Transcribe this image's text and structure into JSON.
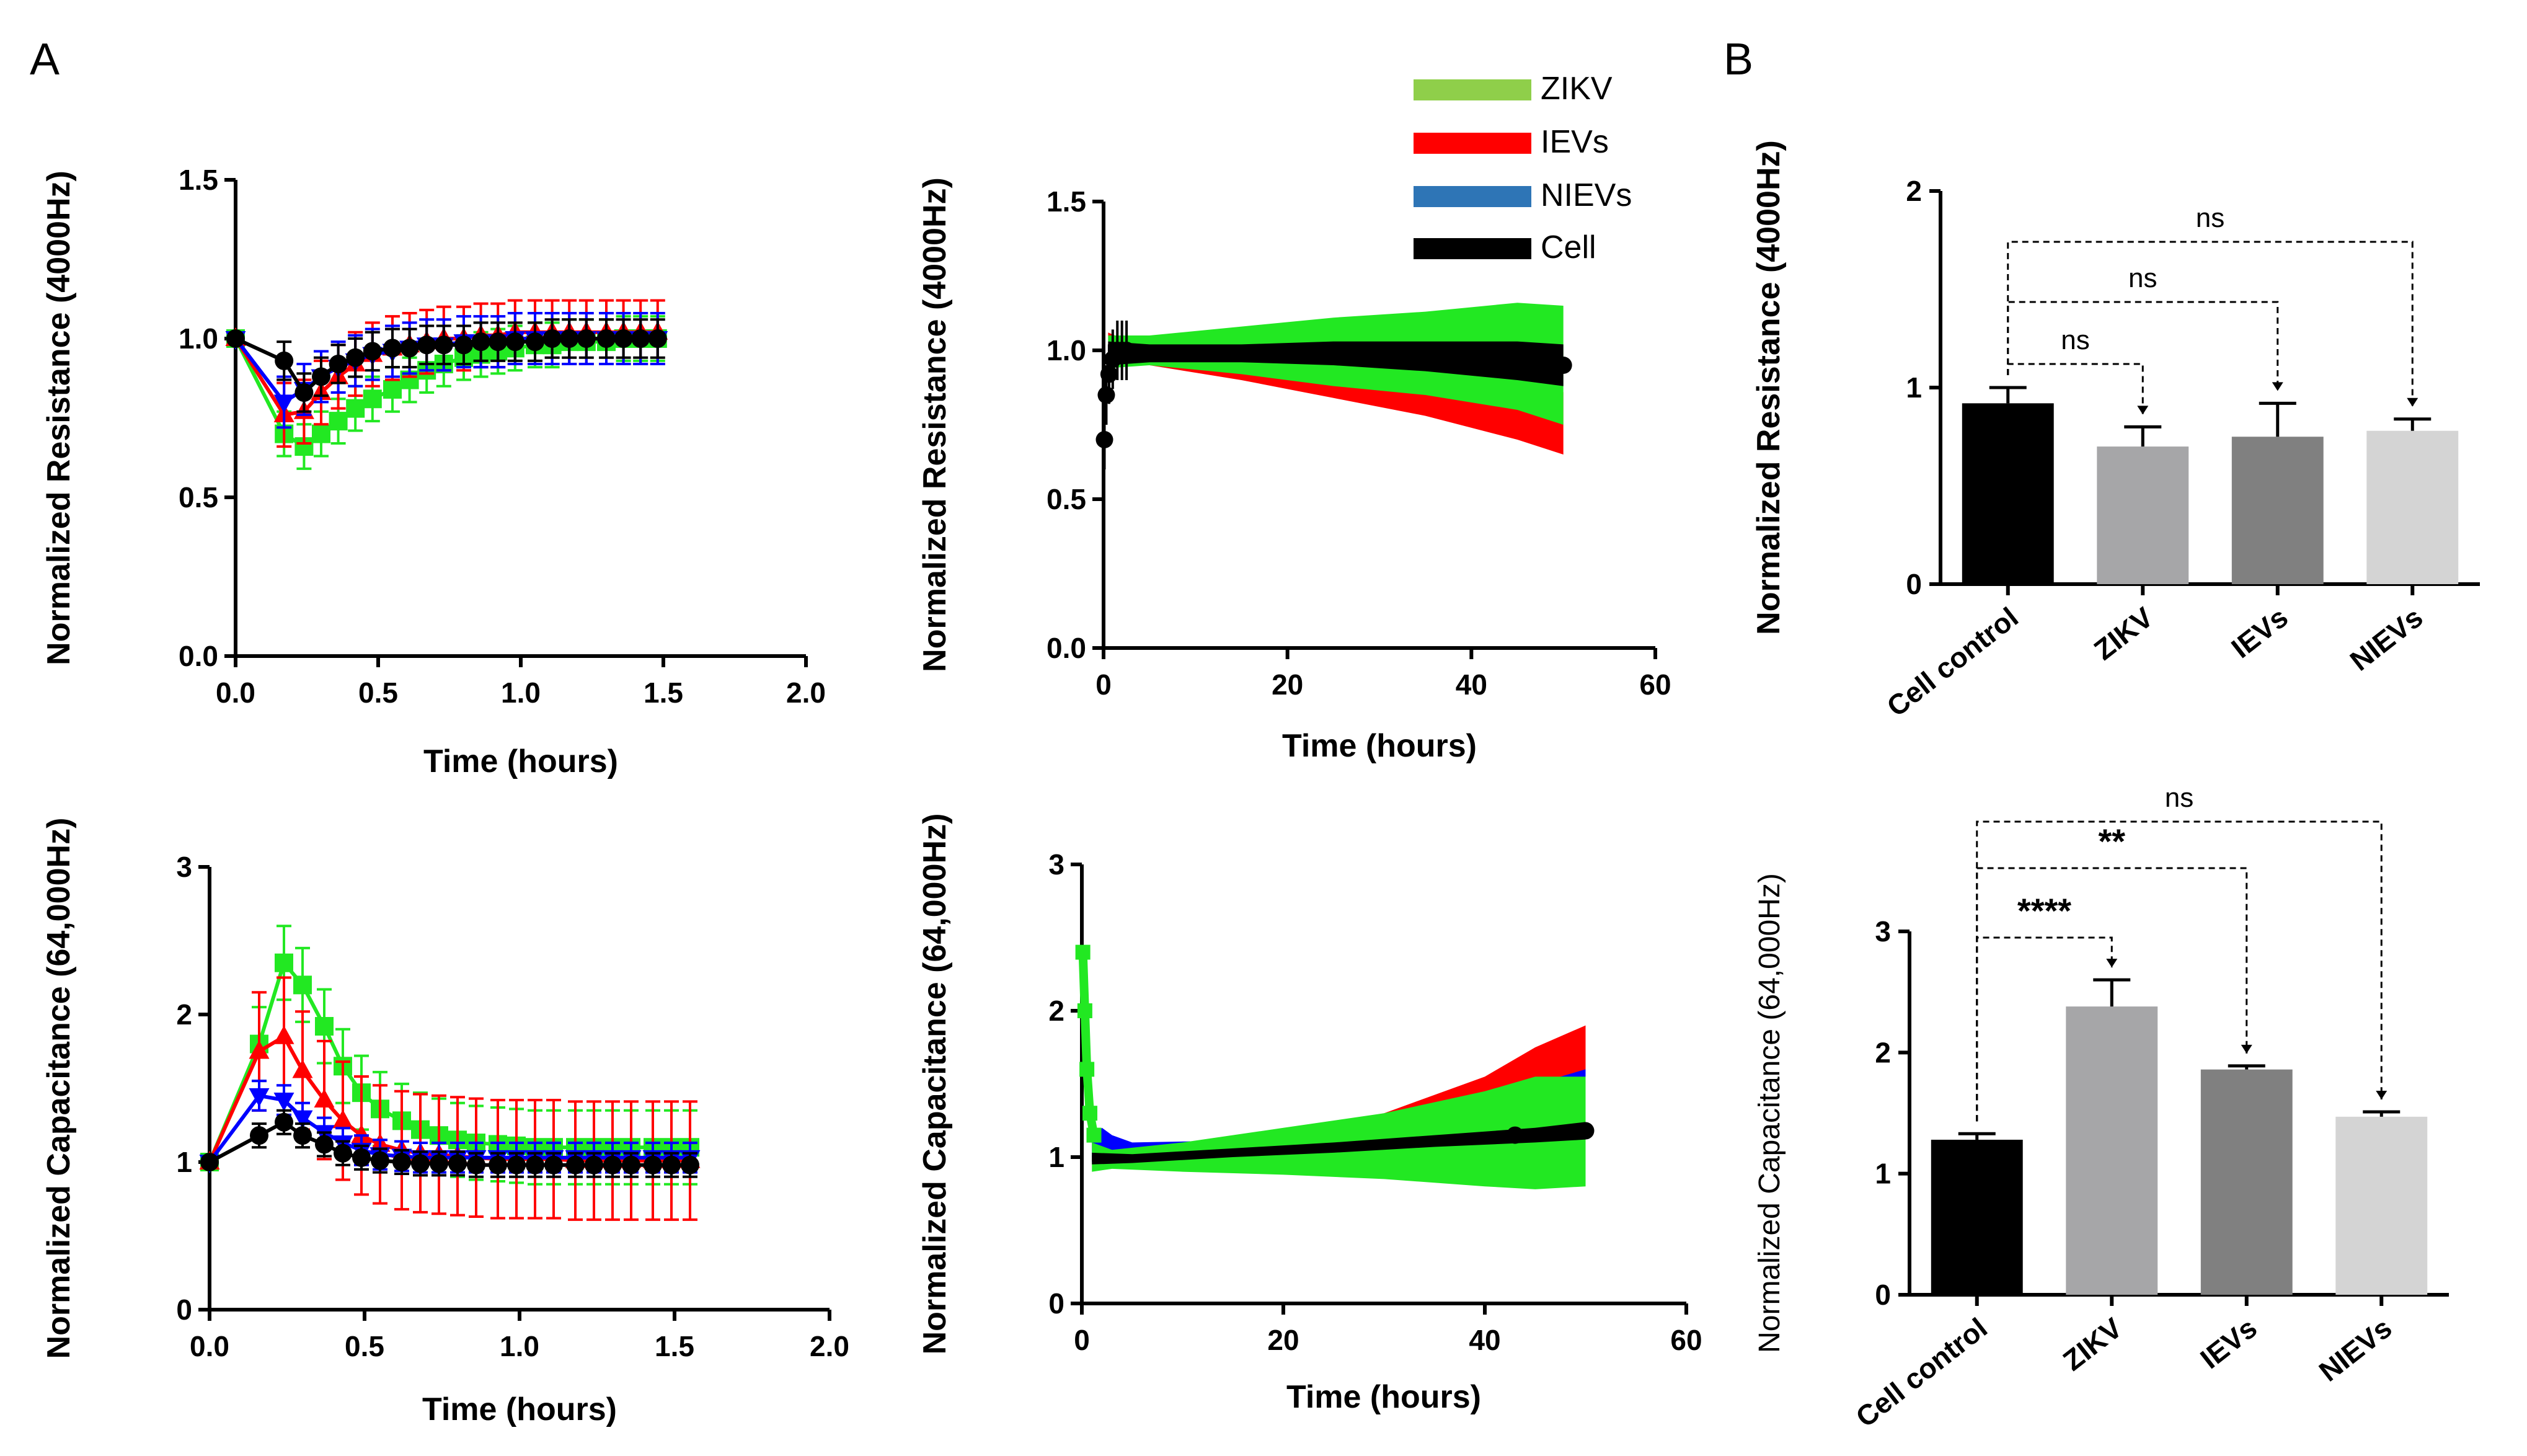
{
  "panel_labels": {
    "A": "A",
    "B": "B"
  },
  "legend": [
    {
      "name": "ZIKV",
      "color": "#8fcf4a"
    },
    {
      "name": "IEVs",
      "color": "#ff0000"
    },
    {
      "name": "NIEVs",
      "color": "#2e75b6"
    },
    {
      "name": "Cell",
      "color": "#000000"
    }
  ],
  "chart_data": [
    {
      "id": "res_short",
      "type": "line",
      "xlabel": "Time (hours)",
      "ylabel": "Normalized Resistance (4000Hz)",
      "xlim": [
        0,
        2.0
      ],
      "ylim": [
        0,
        1.5
      ],
      "xticks": [
        "0.0",
        "0.5",
        "1.0",
        "1.5",
        "2.0"
      ],
      "yticks": [
        "0.0",
        "0.5",
        "1.0",
        "1.5"
      ],
      "x": [
        0,
        0.17,
        0.24,
        0.3,
        0.36,
        0.42,
        0.48,
        0.55,
        0.61,
        0.67,
        0.73,
        0.8,
        0.86,
        0.92,
        0.98,
        1.05,
        1.11,
        1.17,
        1.23,
        1.3,
        1.36,
        1.42,
        1.48
      ],
      "series": [
        {
          "name": "ZIKV",
          "color": "#22e822",
          "marker": "square",
          "err": 0.07,
          "values": [
            1.0,
            0.7,
            0.66,
            0.7,
            0.74,
            0.78,
            0.81,
            0.84,
            0.87,
            0.9,
            0.92,
            0.94,
            0.95,
            0.96,
            0.97,
            0.98,
            0.98,
            0.99,
            0.99,
            0.99,
            1.0,
            1.0,
            1.0
          ]
        },
        {
          "name": "IEVs",
          "color": "#ff0000",
          "marker": "triangle",
          "err": 0.1,
          "values": [
            1.0,
            0.76,
            0.77,
            0.83,
            0.88,
            0.92,
            0.95,
            0.97,
            0.98,
            0.99,
            1.0,
            1.0,
            1.01,
            1.01,
            1.02,
            1.02,
            1.02,
            1.02,
            1.02,
            1.02,
            1.02,
            1.02,
            1.02
          ]
        },
        {
          "name": "NIEVs",
          "color": "#0000ff",
          "marker": "triangle-down",
          "err": 0.08,
          "values": [
            1.0,
            0.8,
            0.84,
            0.88,
            0.91,
            0.93,
            0.95,
            0.96,
            0.97,
            0.98,
            0.98,
            0.99,
            0.99,
            0.99,
            1.0,
            1.0,
            1.0,
            1.0,
            1.0,
            1.0,
            1.0,
            1.0,
            1.0
          ]
        },
        {
          "name": "Cell",
          "color": "#000000",
          "marker": "circle",
          "err": 0.06,
          "values": [
            1.0,
            0.93,
            0.83,
            0.88,
            0.92,
            0.94,
            0.96,
            0.97,
            0.97,
            0.98,
            0.98,
            0.98,
            0.99,
            0.99,
            0.99,
            0.99,
            1.0,
            1.0,
            1.0,
            1.0,
            1.0,
            1.0,
            1.0
          ]
        }
      ]
    },
    {
      "id": "res_long",
      "type": "area",
      "xlabel": "Time (hours)",
      "ylabel": "Normalized Resistance (4000Hz)",
      "xlim": [
        0,
        60
      ],
      "ylim": [
        0,
        1.5
      ],
      "xticks": [
        "0",
        "20",
        "40",
        "60"
      ],
      "yticks": [
        "0.0",
        "0.5",
        "1.0",
        "1.5"
      ],
      "bands": [
        {
          "name": "IEVs",
          "color": "#ff0000",
          "x": [
            0.5,
            5,
            15,
            25,
            35,
            45,
            50
          ],
          "lo": [
            0.98,
            0.95,
            0.9,
            0.84,
            0.78,
            0.7,
            0.65
          ],
          "hi": [
            1.06,
            1.0,
            0.98,
            0.95,
            0.92,
            0.88,
            0.86
          ]
        },
        {
          "name": "ZIKV",
          "color": "#22e822",
          "x": [
            0.5,
            5,
            15,
            25,
            35,
            45,
            50
          ],
          "lo": [
            0.94,
            0.95,
            0.92,
            0.88,
            0.85,
            0.8,
            0.75
          ],
          "hi": [
            1.05,
            1.05,
            1.08,
            1.11,
            1.13,
            1.16,
            1.15
          ]
        },
        {
          "name": "Cell",
          "color": "#000000",
          "x": [
            0.5,
            5,
            15,
            25,
            35,
            45,
            50
          ],
          "lo": [
            0.95,
            0.96,
            0.96,
            0.95,
            0.93,
            0.9,
            0.88
          ],
          "hi": [
            1.03,
            1.02,
            1.02,
            1.03,
            1.03,
            1.03,
            1.02
          ]
        }
      ]
    },
    {
      "id": "cap_short",
      "type": "line",
      "xlabel": "Time (hours)",
      "ylabel": "Normalized Capacitance (64,000Hz)",
      "xlim": [
        0,
        2.0
      ],
      "ylim": [
        0,
        3
      ],
      "xticks": [
        "0.0",
        "0.5",
        "1.0",
        "1.5",
        "2.0"
      ],
      "yticks": [
        "0",
        "1",
        "2",
        "3"
      ],
      "x": [
        0,
        0.16,
        0.24,
        0.3,
        0.37,
        0.43,
        0.49,
        0.55,
        0.62,
        0.68,
        0.74,
        0.8,
        0.86,
        0.93,
        0.99,
        1.05,
        1.11,
        1.18,
        1.24,
        1.3,
        1.36,
        1.43,
        1.49,
        1.55
      ],
      "series": [
        {
          "name": "ZIKV",
          "color": "#22e822",
          "marker": "square",
          "err": 0.25,
          "values": [
            1.0,
            1.8,
            2.35,
            2.2,
            1.92,
            1.65,
            1.47,
            1.36,
            1.28,
            1.22,
            1.18,
            1.15,
            1.13,
            1.12,
            1.11,
            1.1,
            1.1,
            1.1,
            1.1,
            1.1,
            1.1,
            1.1,
            1.1,
            1.1
          ]
        },
        {
          "name": "IEVs",
          "color": "#ff0000",
          "marker": "triangle",
          "err": 0.4,
          "values": [
            1.0,
            1.75,
            1.85,
            1.62,
            1.42,
            1.28,
            1.18,
            1.12,
            1.08,
            1.06,
            1.05,
            1.04,
            1.03,
            1.02,
            1.02,
            1.02,
            1.02,
            1.01,
            1.01,
            1.01,
            1.01,
            1.01,
            1.01,
            1.01
          ]
        },
        {
          "name": "NIEVs",
          "color": "#0000ff",
          "marker": "triangle-down",
          "err": 0.1,
          "values": [
            1.0,
            1.45,
            1.42,
            1.3,
            1.2,
            1.13,
            1.08,
            1.05,
            1.04,
            1.03,
            1.03,
            1.03,
            1.03,
            1.03,
            1.03,
            1.03,
            1.03,
            1.03,
            1.03,
            1.03,
            1.03,
            1.03,
            1.03,
            1.03
          ]
        },
        {
          "name": "Cell",
          "color": "#000000",
          "marker": "circle",
          "err": 0.08,
          "values": [
            1.0,
            1.18,
            1.27,
            1.18,
            1.12,
            1.06,
            1.03,
            1.01,
            1.0,
            0.99,
            0.99,
            0.99,
            0.98,
            0.98,
            0.98,
            0.98,
            0.98,
            0.98,
            0.98,
            0.98,
            0.98,
            0.98,
            0.98,
            0.98
          ]
        }
      ]
    },
    {
      "id": "cap_long",
      "type": "area",
      "xlabel": "Time (hours)",
      "ylabel": "Normalized Capacitance (64,000Hz)",
      "xlim": [
        0,
        60
      ],
      "ylim": [
        0,
        3
      ],
      "xticks": [
        "0",
        "20",
        "40",
        "60"
      ],
      "yticks": [
        "0",
        "1",
        "2",
        "3"
      ],
      "bands": [
        {
          "name": "IEVs",
          "color": "#ff0000",
          "x": [
            2,
            10,
            20,
            30,
            40,
            45,
            50
          ],
          "lo": [
            0.95,
            0.97,
            1.0,
            1.05,
            1.15,
            1.3,
            1.5
          ],
          "hi": [
            1.05,
            1.08,
            1.18,
            1.3,
            1.55,
            1.75,
            1.9
          ]
        },
        {
          "name": "NIEVs",
          "color": "#0000ff",
          "x": [
            1,
            2,
            3,
            5,
            20,
            40,
            50
          ],
          "lo": [
            1.0,
            1.05,
            1.0,
            0.95,
            0.97,
            1.0,
            1.02
          ],
          "hi": [
            1.12,
            1.2,
            1.15,
            1.1,
            1.12,
            1.4,
            1.6
          ]
        },
        {
          "name": "ZIKV",
          "color": "#22e822",
          "x": [
            1,
            3,
            10,
            20,
            30,
            40,
            45,
            50
          ],
          "lo": [
            0.9,
            0.92,
            0.9,
            0.88,
            0.85,
            0.8,
            0.78,
            0.8
          ],
          "hi": [
            1.1,
            1.05,
            1.1,
            1.2,
            1.3,
            1.45,
            1.55,
            1.55
          ]
        },
        {
          "name": "Cell",
          "color": "#000000",
          "x": [
            1,
            5,
            15,
            25,
            35,
            45,
            50
          ],
          "lo": [
            0.95,
            0.96,
            1.0,
            1.03,
            1.07,
            1.1,
            1.12
          ],
          "hi": [
            1.03,
            1.02,
            1.06,
            1.1,
            1.15,
            1.2,
            1.24
          ]
        }
      ],
      "spike": {
        "x": [
          0.1,
          0.3,
          0.5,
          0.8,
          1.2
        ],
        "values": [
          2.4,
          2.0,
          1.6,
          1.3,
          1.15
        ]
      }
    },
    {
      "id": "bar_res",
      "type": "bar",
      "ylabel": "Normalized Resistance (4000Hz)",
      "ylim": [
        0,
        2
      ],
      "yticks": [
        "0",
        "1",
        "2"
      ],
      "categories": [
        "Cell control",
        "ZIKV",
        "IEVs",
        "NIEVs"
      ],
      "values": [
        0.92,
        0.7,
        0.75,
        0.78
      ],
      "errors": [
        0.08,
        0.1,
        0.17,
        0.06
      ],
      "colors": [
        "#000000",
        "#a6a6a8",
        "#808080",
        "#d4d4d4"
      ],
      "comparisons": [
        {
          "from": 0,
          "to": 1,
          "label": "ns"
        },
        {
          "from": 0,
          "to": 2,
          "label": "ns"
        },
        {
          "from": 0,
          "to": 3,
          "label": "ns"
        }
      ]
    },
    {
      "id": "bar_cap",
      "type": "bar",
      "ylabel": "Normalized Capacitance (64,000Hz)",
      "ylim": [
        0,
        3
      ],
      "yticks": [
        "0",
        "1",
        "2",
        "3"
      ],
      "categories": [
        "Cell control",
        "ZIKV",
        "IEVs",
        "NIEVs"
      ],
      "values": [
        1.28,
        2.38,
        1.86,
        1.47
      ],
      "errors": [
        0.05,
        0.22,
        0.03,
        0.04
      ],
      "colors": [
        "#000000",
        "#a6a6a8",
        "#808080",
        "#d4d4d4"
      ],
      "comparisons": [
        {
          "from": 0,
          "to": 1,
          "label": "****"
        },
        {
          "from": 0,
          "to": 2,
          "label": "**"
        },
        {
          "from": 0,
          "to": 3,
          "label": "ns"
        }
      ]
    }
  ]
}
